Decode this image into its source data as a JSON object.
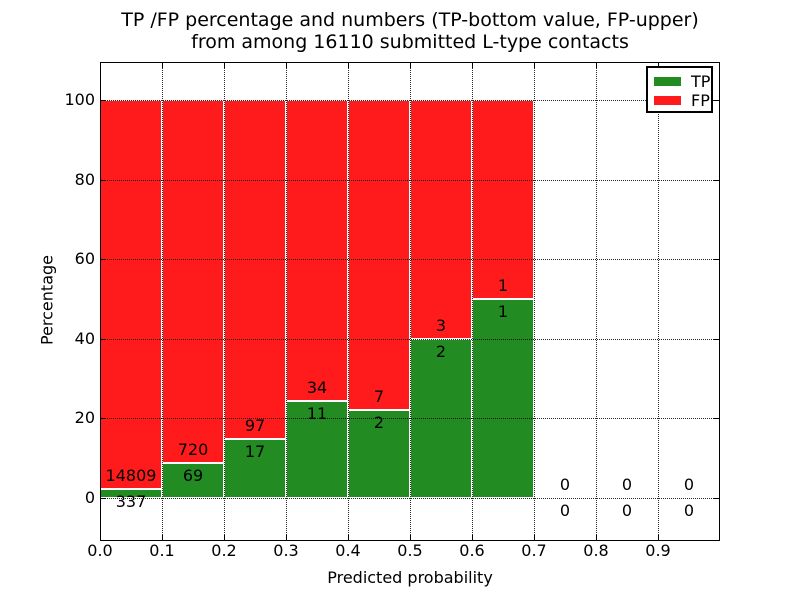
{
  "figure": {
    "background": "#ffffff",
    "text_color": "#000000"
  },
  "chart_data": {
    "type": "bar",
    "stacked": true,
    "title_lines": [
      "TP /FP percentage and numbers (TP-bottom value, FP-upper)",
      "from among 16110 submitted L-type contacts"
    ],
    "total_submitted_contacts": 16110,
    "xlabel": "Predicted probability",
    "ylabel": "Percentage",
    "bin_edges": [
      0.0,
      0.1,
      0.2,
      0.3,
      0.4,
      0.5,
      0.6,
      0.7,
      0.8,
      0.9,
      1.0
    ],
    "series": [
      {
        "name": "TP",
        "color": "#228B22",
        "counts": [
          337,
          69,
          17,
          11,
          2,
          2,
          1,
          0,
          0,
          0
        ],
        "percent": [
          2.2,
          8.7,
          14.9,
          24.4,
          22.2,
          40.0,
          50.0,
          0,
          0,
          0
        ]
      },
      {
        "name": "FP",
        "color": "#FF1B1B",
        "counts": [
          14809,
          720,
          97,
          34,
          7,
          3,
          1,
          0,
          0,
          0
        ],
        "percent": [
          97.8,
          91.3,
          85.1,
          75.6,
          77.8,
          60.0,
          50.0,
          0,
          0,
          0
        ]
      }
    ],
    "bar_edge_color": "#ffffff",
    "annotation_note": "FP count above TP/FP boundary, TP count below boundary",
    "xtick_values": [
      0.0,
      0.1,
      0.2,
      0.3,
      0.4,
      0.5,
      0.6,
      0.7,
      0.8,
      0.9
    ],
    "xtick_labels": [
      "0.0",
      "0.1",
      "0.2",
      "0.3",
      "0.4",
      "0.5",
      "0.6",
      "0.7",
      "0.8",
      "0.9"
    ],
    "ytick_values": [
      0,
      20,
      40,
      60,
      80,
      100
    ],
    "ytick_labels": [
      "0",
      "20",
      "40",
      "60",
      "80",
      "100"
    ],
    "xlim": [
      0.0,
      1.0
    ],
    "ylim": [
      -10.8,
      109.6
    ],
    "grid": {
      "show": true,
      "style": "dotted",
      "color": "#000000"
    },
    "legend": {
      "position": "upper right",
      "entries": [
        {
          "label": "TP",
          "color": "#228B22"
        },
        {
          "label": "FP",
          "color": "#FF1B1B"
        }
      ]
    }
  }
}
